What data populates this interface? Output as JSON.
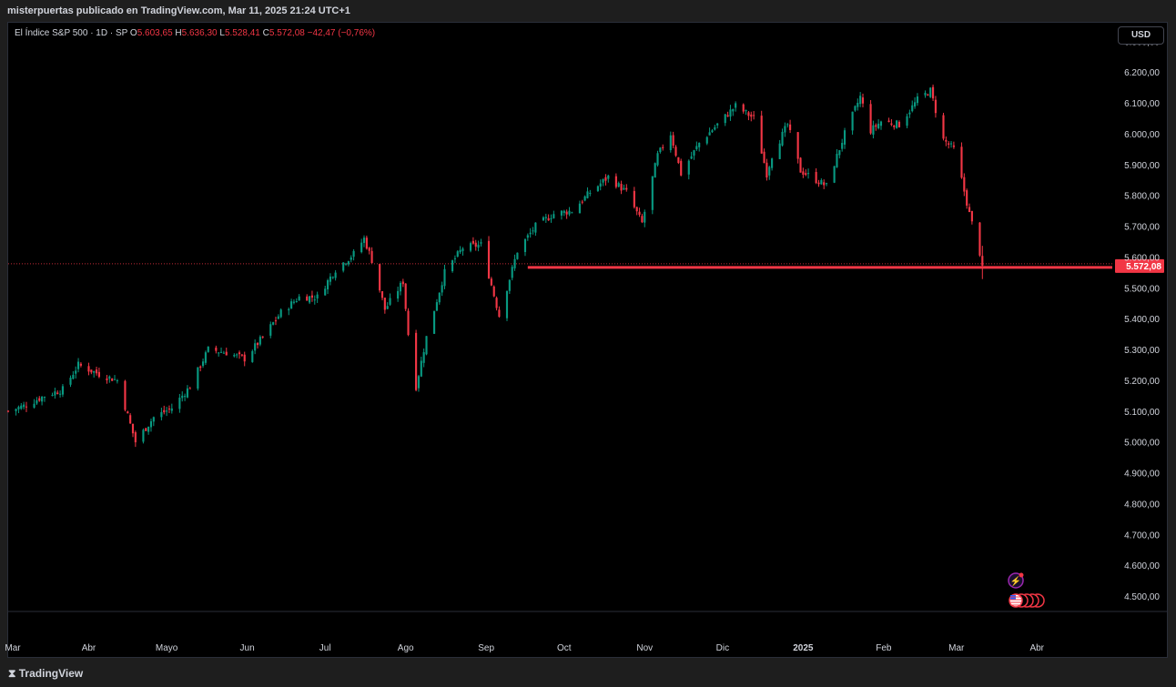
{
  "header": {
    "attribution": "misterpuertas publicado en TradingView.com, Mar 11, 2025 21:24 UTC+1"
  },
  "legend": {
    "symbol": "El Índice S&P 500 · 1D · SP",
    "open_label": "O",
    "open": "5.603,65",
    "high_label": "H",
    "high": "5.636,30",
    "low_label": "L",
    "low": "5.528,41",
    "close_label": "C",
    "close": "5.572,08",
    "change": "−42,47 (−0,76%)"
  },
  "currency_button": "USD",
  "footer": {
    "brand": "TradingView"
  },
  "colors": {
    "up": "#089981",
    "down": "#f23645",
    "background": "#000000",
    "text": "#d1d4dc"
  },
  "chart_data": {
    "type": "candlestick",
    "title": "",
    "ylim": [
      4450,
      6360
    ],
    "y_ticks": [
      4500,
      4600,
      4700,
      4800,
      4900,
      5000,
      5100,
      5200,
      5300,
      5400,
      5500,
      5600,
      5700,
      5800,
      5900,
      6000,
      6100,
      6200,
      6300
    ],
    "y_tick_labels": [
      "4.500,00",
      "4.600,00",
      "4.700,00",
      "4.800,00",
      "4.900,00",
      "5.000,00",
      "5.100,00",
      "5.200,00",
      "5.300,00",
      "5.400,00",
      "5.500,00",
      "5.600,00",
      "5.700,00",
      "5.800,00",
      "5.900,00",
      "6.000,00",
      "6.100,00",
      "6.200,00",
      "6.300,00"
    ],
    "x_range": [
      "2024-03-01",
      "2025-04-30"
    ],
    "x_ticks": [
      {
        "date": "2024-03-01",
        "label": "Mar"
      },
      {
        "date": "2024-04-01",
        "label": "Abr"
      },
      {
        "date": "2024-05-01",
        "label": "Mayo"
      },
      {
        "date": "2024-06-01",
        "label": "Jun"
      },
      {
        "date": "2024-07-01",
        "label": "Jul"
      },
      {
        "date": "2024-08-01",
        "label": "Ago"
      },
      {
        "date": "2024-09-01",
        "label": "Sep"
      },
      {
        "date": "2024-10-01",
        "label": "Oct"
      },
      {
        "date": "2024-11-01",
        "label": "Nov"
      },
      {
        "date": "2024-12-01",
        "label": "Dic"
      },
      {
        "date": "2025-01-01",
        "label": "2025",
        "bold": true
      },
      {
        "date": "2025-02-01",
        "label": "Feb"
      },
      {
        "date": "2025-03-01",
        "label": "Mar"
      },
      {
        "date": "2025-04-01",
        "label": "Abr"
      }
    ],
    "path": [
      [
        "2024-03-01",
        5100
      ],
      [
        "2024-03-08",
        5120
      ],
      [
        "2024-03-15",
        5150
      ],
      [
        "2024-03-22",
        5170
      ],
      [
        "2024-03-28",
        5250
      ],
      [
        "2024-04-05",
        5220
      ],
      [
        "2024-04-12",
        5200
      ],
      [
        "2024-04-19",
        5000
      ],
      [
        "2024-04-26",
        5080
      ],
      [
        "2024-05-03",
        5110
      ],
      [
        "2024-05-10",
        5180
      ],
      [
        "2024-05-17",
        5300
      ],
      [
        "2024-05-24",
        5290
      ],
      [
        "2024-05-31",
        5270
      ],
      [
        "2024-06-07",
        5340
      ],
      [
        "2024-06-14",
        5420
      ],
      [
        "2024-06-21",
        5470
      ],
      [
        "2024-06-28",
        5470
      ],
      [
        "2024-07-05",
        5560
      ],
      [
        "2024-07-12",
        5610
      ],
      [
        "2024-07-16",
        5660
      ],
      [
        "2024-07-19",
        5590
      ],
      [
        "2024-07-24",
        5430
      ],
      [
        "2024-07-31",
        5520
      ],
      [
        "2024-08-02",
        5350
      ],
      [
        "2024-08-05",
        5180
      ],
      [
        "2024-08-09",
        5340
      ],
      [
        "2024-08-16",
        5550
      ],
      [
        "2024-08-23",
        5630
      ],
      [
        "2024-08-30",
        5640
      ],
      [
        "2024-09-06",
        5410
      ],
      [
        "2024-09-13",
        5620
      ],
      [
        "2024-09-20",
        5700
      ],
      [
        "2024-09-27",
        5740
      ],
      [
        "2024-10-04",
        5750
      ],
      [
        "2024-10-11",
        5810
      ],
      [
        "2024-10-18",
        5860
      ],
      [
        "2024-10-25",
        5810
      ],
      [
        "2024-10-31",
        5710
      ],
      [
        "2024-11-06",
        5930
      ],
      [
        "2024-11-11",
        6000
      ],
      [
        "2024-11-15",
        5870
      ],
      [
        "2024-11-22",
        5970
      ],
      [
        "2024-11-29",
        6030
      ],
      [
        "2024-12-06",
        6090
      ],
      [
        "2024-12-13",
        6050
      ],
      [
        "2024-12-18",
        5870
      ],
      [
        "2024-12-20",
        5930
      ],
      [
        "2024-12-26",
        6030
      ],
      [
        "2024-12-31",
        5880
      ],
      [
        "2025-01-10",
        5830
      ],
      [
        "2025-01-17",
        6000
      ],
      [
        "2025-01-23",
        6120
      ],
      [
        "2025-01-27",
        6010
      ],
      [
        "2025-01-31",
        6040
      ],
      [
        "2025-02-07",
        6030
      ],
      [
        "2025-02-14",
        6110
      ],
      [
        "2025-02-19",
        6140
      ],
      [
        "2025-02-24",
        5980
      ],
      [
        "2025-02-28",
        5950
      ],
      [
        "2025-03-03",
        5850
      ],
      [
        "2025-03-06",
        5740
      ],
      [
        "2025-03-10",
        5614
      ],
      [
        "2025-03-11",
        5572.08
      ]
    ],
    "last_candle": {
      "date": "2025-03-11",
      "open": 5603.65,
      "high": 5636.3,
      "low": 5528.41,
      "close": 5572.08
    },
    "last_price": 5572.08,
    "last_price_label": "5.572,08",
    "price_line_start": "2024-09-17",
    "icons": [
      "lightning-event-icon",
      "us-flag-events-icon"
    ]
  }
}
